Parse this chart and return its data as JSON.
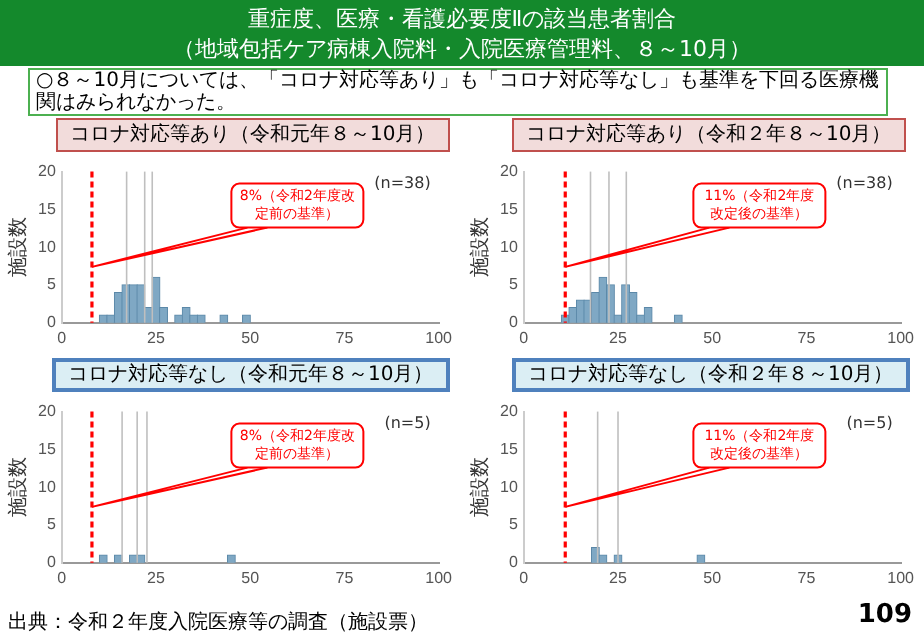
{
  "chart_data": [
    {
      "type": "histogram",
      "title": "コロナ対応等あり（令和元年８～10月）",
      "ylabel": "施設数",
      "color": "#7fa8c4",
      "bins": [
        10,
        12,
        14,
        16,
        18,
        20,
        22,
        24,
        26,
        28,
        30,
        32,
        34,
        36,
        38,
        40,
        42,
        44,
        46,
        48,
        50
      ],
      "values": [
        1,
        1,
        4,
        5,
        5,
        5,
        2,
        6,
        2,
        0,
        1,
        2,
        1,
        1,
        0,
        0,
        1,
        0,
        0,
        1
      ],
      "xlim": [
        0,
        100
      ],
      "xticks": [
        0,
        25,
        50,
        75,
        100
      ],
      "ylim": [
        0,
        20
      ],
      "yticks": [
        0,
        5,
        10,
        15,
        20
      ],
      "ref_lines": [
        {
          "axis": "x",
          "value": 17.2,
          "color": "#bfbfbf"
        },
        {
          "axis": "x",
          "value": 22,
          "color": "#bfbfbf"
        },
        {
          "axis": "x",
          "value": 24,
          "color": "#bfbfbf"
        },
        {
          "axis": "x",
          "value": 8,
          "label": "8%（令和2年度改定前の基準）",
          "color": "#ff0000",
          "line_style": "dashed"
        }
      ],
      "annotations": [
        "(n=38)",
        "重症度、医療・看護必要度Ⅱの該当患者割合",
        "（地域包括ケア病棟入院料・入院医療管理料、８～10月）",
        "○８～10月については、「コロナ対応等あり」も「コロナ対応等なし」も基準を下回る医療機関はみられなかった。",
        "出典：令和２年度入院医療等の調査（施設票）",
        "109"
      ]
    },
    {
      "type": "histogram",
      "title": "コロナ対応等あり（令和２年８～10月）",
      "ylabel": "施設数",
      "color": "#7fa8c4",
      "bins": [
        10,
        12,
        14,
        16,
        18,
        20,
        22,
        24,
        26,
        28,
        30,
        32,
        34,
        36,
        38,
        40,
        42
      ],
      "values": [
        1,
        2,
        3,
        3,
        4,
        6,
        5,
        1,
        5,
        4,
        1,
        2,
        0,
        0,
        0,
        1
      ],
      "xlim": [
        0,
        100
      ],
      "xticks": [
        0,
        25,
        50,
        75,
        100
      ],
      "ylim": [
        0,
        20
      ],
      "yticks": [
        0,
        5,
        10,
        15,
        20
      ],
      "ref_lines": [
        {
          "axis": "x",
          "value": 17.7,
          "color": "#bfbfbf"
        },
        {
          "axis": "x",
          "value": 22.6,
          "color": "#bfbfbf"
        },
        {
          "axis": "x",
          "value": 27.2,
          "color": "#bfbfbf"
        },
        {
          "axis": "x",
          "value": 11,
          "label": "11%（令和2年度改定後の基準）",
          "color": "#ff0000",
          "line_style": "dashed"
        }
      ],
      "annotations": [
        "(n=38)"
      ]
    },
    {
      "type": "histogram",
      "title": "コロナ対応等なし（令和元年８～10月）",
      "ylabel": "施設数",
      "color": "#7fa8c4",
      "bins": [
        10,
        12,
        14,
        16,
        18,
        20,
        22,
        24,
        26,
        28,
        30,
        32,
        34,
        36,
        38,
        40,
        42,
        44,
        46
      ],
      "values": [
        1,
        0,
        1,
        0,
        1,
        1,
        0,
        0,
        0,
        0,
        0,
        0,
        0,
        0,
        0,
        0,
        0,
        1
      ],
      "xlim": [
        0,
        100
      ],
      "xticks": [
        0,
        25,
        50,
        75,
        100
      ],
      "ylim": [
        0,
        20
      ],
      "yticks": [
        0,
        5,
        10,
        15,
        20
      ],
      "ref_lines": [
        {
          "axis": "x",
          "value": 16,
          "color": "#bfbfbf"
        },
        {
          "axis": "x",
          "value": 20,
          "color": "#bfbfbf"
        },
        {
          "axis": "x",
          "value": 22.6,
          "color": "#bfbfbf"
        },
        {
          "axis": "x",
          "value": 8,
          "label": "8%（令和2年度改定前の基準）",
          "color": "#ff0000",
          "line_style": "dashed"
        }
      ],
      "annotations": [
        "(n=5)"
      ]
    },
    {
      "type": "histogram",
      "title": "コロナ対応等なし（令和２年８～10月）",
      "ylabel": "施設数",
      "color": "#7fa8c4",
      "bins": [
        18,
        20,
        22,
        24,
        26,
        28,
        30,
        32,
        34,
        36,
        38,
        40,
        42,
        44,
        46,
        48
      ],
      "values": [
        2,
        1,
        0,
        1,
        0,
        0,
        0,
        0,
        0,
        0,
        0,
        0,
        0,
        0,
        1
      ],
      "xlim": [
        0,
        100
      ],
      "xticks": [
        0,
        25,
        50,
        75,
        100
      ],
      "ylim": [
        0,
        20
      ],
      "yticks": [
        0,
        5,
        10,
        15,
        20
      ],
      "ref_lines": [
        {
          "axis": "x",
          "value": 19.6,
          "color": "#bfbfbf"
        },
        {
          "axis": "x",
          "value": 25,
          "color": "#bfbfbf"
        },
        {
          "axis": "x",
          "value": 11,
          "label": "11%（令和2年度改定後の基準）",
          "color": "#ff0000",
          "line_style": "dashed"
        }
      ],
      "annotations": [
        "(n=5)"
      ]
    }
  ]
}
